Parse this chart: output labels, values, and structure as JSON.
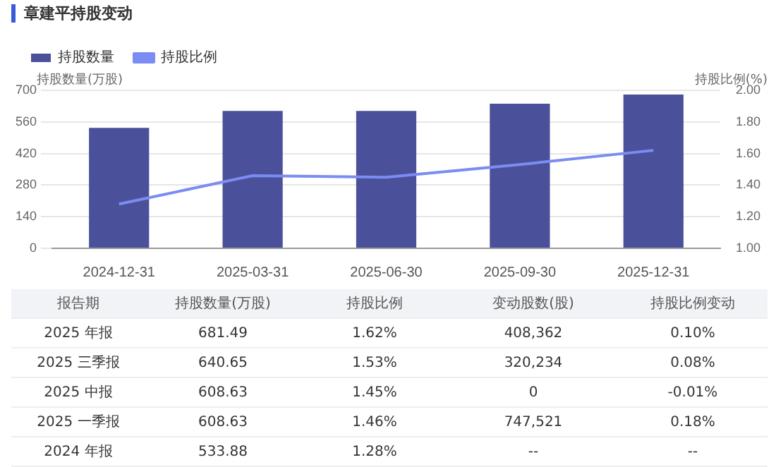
{
  "chart_data": {
    "type": "bar",
    "title": "章建平持股变动",
    "ylabel": "持股数量(万股)",
    "y2label": "持股比例(%)",
    "categories": [
      "2024-12-31",
      "2025-03-31",
      "2025-06-30",
      "2025-09-30",
      "2025-12-31"
    ],
    "series": [
      {
        "name": "持股数量",
        "color": "#4a519a",
        "values": [
          533.88,
          608.63,
          608.63,
          640.65,
          681.49
        ]
      },
      {
        "name": "持股比例",
        "type": "line",
        "axis": "y2",
        "color": "#7b8cf2",
        "values": [
          1.28,
          1.46,
          1.45,
          1.53,
          1.62
        ]
      }
    ],
    "ylim": [
      0,
      700
    ],
    "yticks": [
      0,
      140,
      280,
      420,
      560,
      700
    ],
    "y2lim": [
      1,
      2
    ],
    "y2ticks": [
      {
        "value": 1,
        "label": "1.00"
      },
      {
        "value": 1.2,
        "label": "1.20"
      },
      {
        "value": 1.4,
        "label": "1.40"
      },
      {
        "value": 1.6,
        "label": "1.60"
      },
      {
        "value": 1.8,
        "label": "1.80"
      },
      {
        "value": 2,
        "label": "2.00"
      }
    ],
    "grid": "y",
    "legend": "top left",
    "marker": "none",
    "annotations": [
      "报告期",
      "持股数量(万股)",
      "持股比例",
      "变动股数(股)",
      "持股比例变动",
      "2025 年报",
      "681.49",
      "1.62%",
      "408,362",
      "0.10%",
      "2025 三季报",
      "640.65",
      "1.53%",
      "320,234",
      "0.08%",
      "2025 中报",
      "608.63",
      "1.45%",
      "0",
      "-0.01%",
      "2025 一季报",
      "608.63",
      "1.46%",
      "747,521",
      "0.18%",
      "2024 年报",
      "533.88",
      "1.28%",
      "--",
      "--"
    ]
  }
}
